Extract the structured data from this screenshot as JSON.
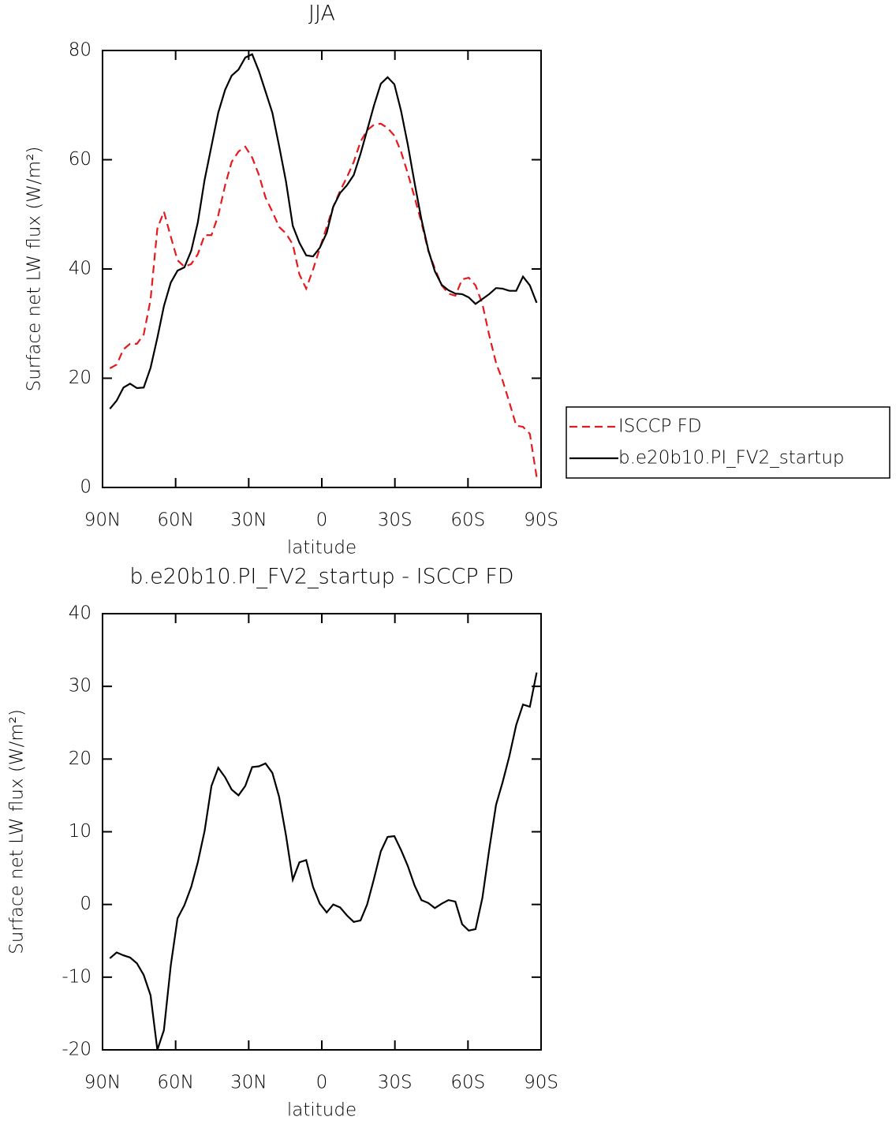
{
  "chart_data": [
    {
      "type": "line",
      "title": "JJA",
      "xlabel": "latitude",
      "ylabel": "Surface net LW flux (W/m²)",
      "x": [
        87.0,
        84.2,
        81.4,
        78.7,
        75.9,
        73.1,
        70.3,
        67.5,
        64.8,
        62.0,
        59.2,
        56.4,
        53.6,
        50.9,
        48.1,
        45.3,
        42.5,
        39.7,
        37.0,
        34.2,
        31.4,
        28.6,
        25.8,
        23.1,
        20.3,
        17.5,
        14.7,
        11.9,
        9.2,
        6.4,
        3.6,
        0.8,
        -2.0,
        -4.7,
        -7.5,
        -10.3,
        -13.1,
        -15.9,
        -18.6,
        -21.4,
        -24.2,
        -27.0,
        -29.8,
        -32.5,
        -35.3,
        -38.1,
        -40.9,
        -43.7,
        -46.4,
        -49.2,
        -52.0,
        -54.8,
        -57.6,
        -60.3,
        -63.1,
        -65.9,
        -68.7,
        -71.5,
        -74.2,
        -77.0,
        -79.8,
        -82.6,
        -85.4,
        -88.2
      ],
      "series": [
        {
          "name": "ISCCP FD",
          "color": "#e41a1c",
          "linestyle": "dashed",
          "values": [
            21.8,
            22.5,
            25.3,
            26.3,
            26.3,
            28,
            34.4,
            47.4,
            50.5,
            45.9,
            41.6,
            40.4,
            40.9,
            42.7,
            46.2,
            46.2,
            49.8,
            55.3,
            59.6,
            61.5,
            62.4,
            60.4,
            57.2,
            53.1,
            50.5,
            47.7,
            46.5,
            44.5,
            39,
            36.4,
            39.9,
            43.8,
            47.7,
            51.4,
            54.3,
            56.8,
            59.6,
            63.3,
            65.4,
            66.4,
            66.6,
            65.8,
            64.4,
            61.5,
            57.5,
            53.1,
            48.5,
            43.3,
            40.1,
            37,
            35.5,
            35.1,
            38.1,
            38.4,
            37,
            33.6,
            27.9,
            22.8,
            19.6,
            15.6,
            11.3,
            11.1,
            9.8,
            1.9
          ]
        },
        {
          "name": "b.e20b10.PI_FV2_startup",
          "color": "#000000",
          "linestyle": "solid",
          "values": [
            14.4,
            15.9,
            18.3,
            19,
            18.2,
            18.3,
            21.9,
            27.4,
            33.2,
            37.5,
            39.7,
            40.3,
            43.3,
            48.5,
            56.3,
            62.5,
            68.6,
            72.8,
            75.4,
            76.5,
            78.7,
            79.3,
            76.2,
            72.5,
            68.6,
            62.5,
            56,
            47.9,
            44.8,
            42.5,
            42.3,
            43.9,
            46.6,
            51.4,
            53.9,
            55.3,
            57.2,
            61.1,
            65.4,
            69.9,
            73.9,
            75.1,
            73.8,
            69,
            62.8,
            55.7,
            49.1,
            43.5,
            39.6,
            37.1,
            36.1,
            35.5,
            35.4,
            34.8,
            33.6,
            34.5,
            35.4,
            36.5,
            36.4,
            36,
            36,
            38.6,
            37,
            33.8
          ]
        }
      ],
      "xlim": [
        90,
        -90
      ],
      "xticks": [
        {
          "value": 90,
          "label": "90N"
        },
        {
          "value": 60,
          "label": "60N"
        },
        {
          "value": 30,
          "label": "30N"
        },
        0,
        {
          "value": -30,
          "label": "30S"
        },
        {
          "value": -60,
          "label": "60S"
        },
        {
          "value": -90,
          "label": "90S"
        }
      ],
      "ylim": [
        0,
        80
      ],
      "yticks": [
        0,
        20,
        40,
        60,
        80
      ],
      "legend": "right"
    },
    {
      "type": "line",
      "title": "b.e20b10.PI_FV2_startup - ISCCP FD",
      "xlabel": "latitude",
      "ylabel": "Surface net LW flux (W/m²)",
      "x": [
        87.0,
        84.2,
        81.4,
        78.7,
        75.9,
        73.1,
        70.3,
        67.5,
        64.8,
        62.0,
        59.2,
        56.4,
        53.6,
        50.9,
        48.1,
        45.3,
        42.5,
        39.7,
        37.0,
        34.2,
        31.4,
        28.6,
        25.8,
        23.1,
        20.3,
        17.5,
        14.7,
        11.9,
        9.2,
        6.4,
        3.6,
        0.8,
        -2.0,
        -4.7,
        -7.5,
        -10.3,
        -13.1,
        -15.9,
        -18.6,
        -21.4,
        -24.2,
        -27.0,
        -29.8,
        -32.5,
        -35.3,
        -38.1,
        -40.9,
        -43.7,
        -46.4,
        -49.2,
        -52.0,
        -54.8,
        -57.6,
        -60.3,
        -63.1,
        -65.9,
        -68.7,
        -71.5,
        -74.2,
        -77.0,
        -79.8,
        -82.6,
        -85.4,
        -88.2
      ],
      "color": "#000000",
      "values": [
        -7.4,
        -6.6,
        -7.0,
        -7.3,
        -8.1,
        -9.7,
        -12.5,
        -20.0,
        -17.3,
        -8.4,
        -1.9,
        -0.1,
        2.4,
        5.8,
        10.1,
        16.3,
        18.8,
        17.5,
        15.8,
        15.0,
        16.3,
        18.9,
        19.0,
        19.4,
        18.1,
        14.8,
        9.5,
        3.4,
        5.8,
        6.1,
        2.4,
        0.1,
        -1.1,
        0,
        -0.4,
        -1.5,
        -2.4,
        -2.2,
        0,
        3.5,
        7.3,
        9.3,
        9.4,
        7.5,
        5.3,
        2.6,
        0.6,
        0.2,
        -0.5,
        0.1,
        0.6,
        0.4,
        -2.7,
        -3.6,
        -3.4,
        0.9,
        7.5,
        13.7,
        16.8,
        20.4,
        24.7,
        27.5,
        27.2,
        31.9
      ],
      "xlim": [
        90,
        -90
      ],
      "xticks": [
        {
          "value": 90,
          "label": "90N"
        },
        {
          "value": 60,
          "label": "60N"
        },
        {
          "value": 30,
          "label": "30N"
        },
        0,
        {
          "value": -30,
          "label": "30S"
        },
        {
          "value": -60,
          "label": "60S"
        },
        {
          "value": -90,
          "label": "90S"
        }
      ],
      "ylim": [
        -20,
        40
      ],
      "yticks": [
        -20,
        -10,
        0,
        10,
        20,
        30,
        40
      ]
    }
  ]
}
